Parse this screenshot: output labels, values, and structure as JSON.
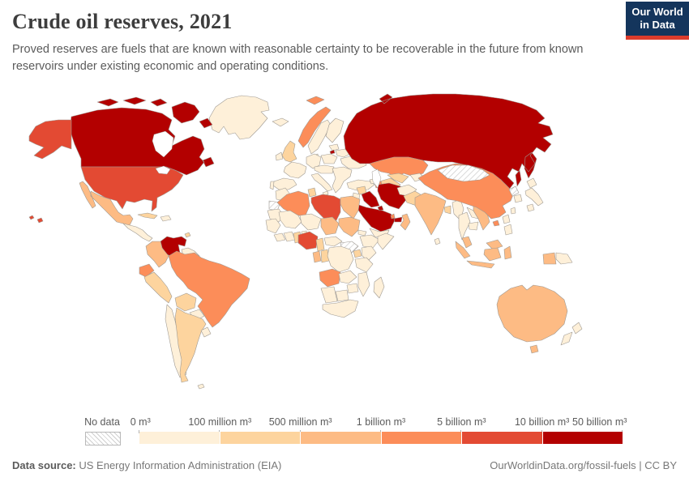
{
  "header": {
    "title": "Crude oil reserves, 2021",
    "subtitle": "Proved reserves are fuels that are known with reasonable certainty to be recoverable in the future from known reservoirs under existing economic and operating conditions.",
    "logo": {
      "line1": "Our World",
      "line2": "in Data",
      "bg_color": "#14355c",
      "bar_color": "#dc3c2c"
    }
  },
  "footer": {
    "source_label": "Data source:",
    "source_text": "US Energy Information Administration (EIA)",
    "right_text": "OurWorldinData.org/fossil-fuels | CC BY"
  },
  "chart_data": {
    "type": "choropleth",
    "title": "Crude oil reserves, 2021",
    "year": 2021,
    "unit": "m³",
    "legend": {
      "no_data_label": "No data",
      "tick_labels": [
        "0 m³",
        "100 million m³",
        "500 million m³",
        "1 billion m³",
        "5 billion m³",
        "10 billion m³",
        "50 billion m³"
      ],
      "bin_colors": [
        "#fef0d9",
        "#fdd49e",
        "#fdbb84",
        "#fc8d59",
        "#e34a33",
        "#b30000"
      ],
      "bin_ranges": [
        "0 – 100 million m³",
        "100 – 500 million m³",
        "500 million – 1 billion m³",
        "1 – 5 billion m³",
        "5 – 10 billion m³",
        "10 – 50 billion m³"
      ],
      "no_data_pattern": "diagonal-hatch"
    },
    "countries": [
      {
        "id": "greenland",
        "name": "Greenland",
        "bin": 1
      },
      {
        "id": "canada",
        "name": "Canada",
        "bin": 6
      },
      {
        "id": "united-states",
        "name": "United States",
        "bin": 5
      },
      {
        "id": "mexico",
        "name": "Mexico",
        "bin": 3
      },
      {
        "id": "central-america",
        "name": "Central America",
        "bin": 1
      },
      {
        "id": "cuba",
        "name": "Cuba",
        "bin": 2
      },
      {
        "id": "hispaniola",
        "name": "Haiti and Dominican Republic",
        "bin": 1
      },
      {
        "id": "trinidad-and-tobago",
        "name": "Trinidad and Tobago",
        "bin": 2
      },
      {
        "id": "venezuela",
        "name": "Venezuela",
        "bin": 6
      },
      {
        "id": "colombia",
        "name": "Colombia",
        "bin": 3
      },
      {
        "id": "guyana-suriname",
        "name": "Guyana and Suriname",
        "bin": 1
      },
      {
        "id": "ecuador",
        "name": "Ecuador",
        "bin": 4
      },
      {
        "id": "peru",
        "name": "Peru",
        "bin": 2
      },
      {
        "id": "brazil",
        "name": "Brazil",
        "bin": 4
      },
      {
        "id": "bolivia",
        "name": "Bolivia",
        "bin": 2
      },
      {
        "id": "paraguay",
        "name": "Paraguay",
        "bin": 1
      },
      {
        "id": "chile",
        "name": "Chile",
        "bin": 1
      },
      {
        "id": "argentina",
        "name": "Argentina",
        "bin": 2
      },
      {
        "id": "uruguay",
        "name": "Uruguay",
        "bin": 1
      },
      {
        "id": "falkland-islands",
        "name": "Falkland Islands",
        "bin": 1
      },
      {
        "id": "iceland",
        "name": "Iceland",
        "bin": 1
      },
      {
        "id": "norway",
        "name": "Norway",
        "bin": 4
      },
      {
        "id": "sweden",
        "name": "Sweden",
        "bin": 1
      },
      {
        "id": "finland",
        "name": "Finland",
        "bin": 1
      },
      {
        "id": "denmark",
        "name": "Denmark",
        "bin": 1
      },
      {
        "id": "united-kingdom",
        "name": "United Kingdom",
        "bin": 2
      },
      {
        "id": "ireland",
        "name": "Ireland",
        "bin": 1
      },
      {
        "id": "france",
        "name": "France",
        "bin": 1
      },
      {
        "id": "spain",
        "name": "Spain",
        "bin": 1
      },
      {
        "id": "portugal",
        "name": "Portugal",
        "bin": 1
      },
      {
        "id": "germany",
        "name": "Germany",
        "bin": 1
      },
      {
        "id": "poland",
        "name": "Poland",
        "bin": 1
      },
      {
        "id": "central-europe",
        "name": "Central Europe",
        "bin": 1
      },
      {
        "id": "italy",
        "name": "Italy",
        "bin": 1
      },
      {
        "id": "balkans",
        "name": "Balkans",
        "bin": 1
      },
      {
        "id": "ukraine",
        "name": "Ukraine",
        "bin": 1
      },
      {
        "id": "belarus",
        "name": "Belarus",
        "bin": 1
      },
      {
        "id": "baltic-states",
        "name": "Baltic states",
        "bin": 1
      },
      {
        "id": "turkey",
        "name": "Turkey",
        "bin": 1
      },
      {
        "id": "russia",
        "name": "Russia",
        "bin": 6
      },
      {
        "id": "kazakhstan",
        "name": "Kazakhstan",
        "bin": 4
      },
      {
        "id": "uzbekistan",
        "name": "Uzbekistan",
        "bin": 2
      },
      {
        "id": "turkmenistan",
        "name": "Turkmenistan",
        "bin": 2
      },
      {
        "id": "kyrgyzstan-tajikistan",
        "name": "Kyrgyzstan and Tajikistan",
        "bin": 1
      },
      {
        "id": "georgia-armenia",
        "name": "Georgia and Armenia",
        "bin": 1
      },
      {
        "id": "azerbaijan",
        "name": "Azerbaijan",
        "bin": 4
      },
      {
        "id": "syria",
        "name": "Syria",
        "bin": 2
      },
      {
        "id": "jordan-israel-lebanon",
        "name": "Jordan, Israel and Lebanon",
        "bin": 1
      },
      {
        "id": "iraq",
        "name": "Iraq",
        "bin": 6
      },
      {
        "id": "iran",
        "name": "Iran",
        "bin": 6
      },
      {
        "id": "saudi-arabia",
        "name": "Saudi Arabia",
        "bin": 6
      },
      {
        "id": "kuwait",
        "name": "Kuwait",
        "bin": 6
      },
      {
        "id": "qatar",
        "name": "Qatar",
        "bin": 4
      },
      {
        "id": "united-arab-emirates",
        "name": "United Arab Emirates",
        "bin": 6
      },
      {
        "id": "oman",
        "name": "Oman",
        "bin": 3
      },
      {
        "id": "yemen",
        "name": "Yemen",
        "bin": 1
      },
      {
        "id": "morocco",
        "name": "Morocco",
        "bin": 1
      },
      {
        "id": "western-sahara",
        "name": "Western Sahara",
        "bin": 0
      },
      {
        "id": "algeria",
        "name": "Algeria",
        "bin": 4
      },
      {
        "id": "tunisia",
        "name": "Tunisia",
        "bin": 2
      },
      {
        "id": "libya",
        "name": "Libya",
        "bin": 5
      },
      {
        "id": "egypt",
        "name": "Egypt",
        "bin": 3
      },
      {
        "id": "mauritania",
        "name": "Mauritania",
        "bin": 1
      },
      {
        "id": "mali",
        "name": "Mali",
        "bin": 1
      },
      {
        "id": "niger",
        "name": "Niger",
        "bin": 1
      },
      {
        "id": "chad",
        "name": "Chad",
        "bin": 3
      },
      {
        "id": "sudan",
        "name": "Sudan",
        "bin": 3
      },
      {
        "id": "eritrea-djibouti",
        "name": "Eritrea and Djibouti",
        "bin": 1
      },
      {
        "id": "ethiopia",
        "name": "Ethiopia",
        "bin": 1
      },
      {
        "id": "somalia",
        "name": "Somalia",
        "bin": 1
      },
      {
        "id": "senegal-guinea",
        "name": "Senegal and Guinea",
        "bin": 1
      },
      {
        "id": "sierra-leone-liberia",
        "name": "Sierra Leone and Liberia",
        "bin": 1
      },
      {
        "id": "ivory-coast",
        "name": "Cote d'Ivoire",
        "bin": 1
      },
      {
        "id": "ghana",
        "name": "Ghana",
        "bin": 2
      },
      {
        "id": "togo-benin",
        "name": "Togo and Benin",
        "bin": 1
      },
      {
        "id": "nigeria",
        "name": "Nigeria",
        "bin": 5
      },
      {
        "id": "cameroon",
        "name": "Cameroon",
        "bin": 2
      },
      {
        "id": "central-african-republic",
        "name": "Central African Republic",
        "bin": 1
      },
      {
        "id": "south-sudan",
        "name": "South Sudan",
        "bin": 0
      },
      {
        "id": "gabon",
        "name": "Gabon",
        "bin": 3
      },
      {
        "id": "republic-of-congo",
        "name": "Congo",
        "bin": 2
      },
      {
        "id": "democratic-republic-of-congo",
        "name": "Democratic Republic of Congo",
        "bin": 1
      },
      {
        "id": "uganda",
        "name": "Uganda",
        "bin": 2
      },
      {
        "id": "kenya",
        "name": "Kenya",
        "bin": 1
      },
      {
        "id": "tanzania",
        "name": "Tanzania",
        "bin": 1
      },
      {
        "id": "angola",
        "name": "Angola",
        "bin": 4
      },
      {
        "id": "zambia",
        "name": "Zambia",
        "bin": 1
      },
      {
        "id": "mozambique",
        "name": "Mozambique",
        "bin": 1
      },
      {
        "id": "zimbabwe",
        "name": "Zimbabwe",
        "bin": 1
      },
      {
        "id": "namibia",
        "name": "Namibia",
        "bin": 1
      },
      {
        "id": "botswana",
        "name": "Botswana",
        "bin": 1
      },
      {
        "id": "south-africa",
        "name": "South Africa",
        "bin": 1
      },
      {
        "id": "madagascar",
        "name": "Madagascar",
        "bin": 1
      },
      {
        "id": "afghanistan",
        "name": "Afghanistan",
        "bin": 1
      },
      {
        "id": "pakistan",
        "name": "Pakistan",
        "bin": 2
      },
      {
        "id": "india",
        "name": "India",
        "bin": 3
      },
      {
        "id": "sri-lanka",
        "name": "Sri Lanka",
        "bin": 1
      },
      {
        "id": "bangladesh",
        "name": "Bangladesh",
        "bin": 2
      },
      {
        "id": "myanmar",
        "name": "Myanmar",
        "bin": 1
      },
      {
        "id": "thailand",
        "name": "Thailand",
        "bin": 1
      },
      {
        "id": "laos",
        "name": "Laos",
        "bin": 1
      },
      {
        "id": "vietnam",
        "name": "Vietnam",
        "bin": 3
      },
      {
        "id": "cambodia",
        "name": "Cambodia",
        "bin": 1
      },
      {
        "id": "china",
        "name": "China",
        "bin": 4
      },
      {
        "id": "mongolia",
        "name": "Mongolia",
        "bin": 0
      },
      {
        "id": "north-korea",
        "name": "North Korea",
        "bin": 0
      },
      {
        "id": "south-korea",
        "name": "South Korea",
        "bin": 1
      },
      {
        "id": "japan",
        "name": "Japan",
        "bin": 1
      },
      {
        "id": "taiwan",
        "name": "Taiwan",
        "bin": 1
      },
      {
        "id": "philippines",
        "name": "Philippines",
        "bin": 1
      },
      {
        "id": "malaysia",
        "name": "Malaysia",
        "bin": 3
      },
      {
        "id": "indonesia",
        "name": "Indonesia",
        "bin": 3
      },
      {
        "id": "papua-new-guinea",
        "name": "Papua New Guinea",
        "bin": 1
      },
      {
        "id": "australia",
        "name": "Australia",
        "bin": 3
      },
      {
        "id": "new-zealand",
        "name": "New Zealand",
        "bin": 1
      }
    ]
  }
}
